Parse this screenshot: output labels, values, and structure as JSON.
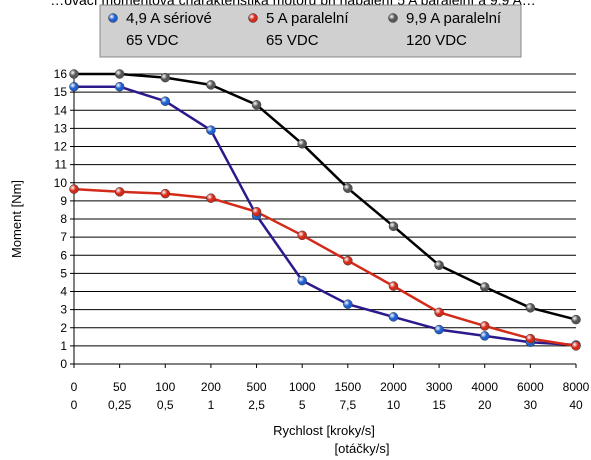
{
  "chart_data": {
    "type": "line",
    "title_partial": "…ovací momentová charakteristika motoru při napájení 5 A paralelní a 9,9 A…",
    "xlabel_lines": [
      "Rychlost [kroky/s]",
      "[otáčky/s]"
    ],
    "ylabel": "Moment [Nm]",
    "ylim": [
      0,
      16
    ],
    "yticks": [
      0,
      1,
      2,
      3,
      4,
      5,
      6,
      7,
      8,
      9,
      10,
      11,
      12,
      13,
      14,
      15,
      16
    ],
    "categories": [
      "0",
      "50",
      "100",
      "200",
      "500",
      "1000",
      "1500",
      "2000",
      "3000",
      "4000",
      "6000",
      "8000"
    ],
    "categories_secondary": [
      "0",
      "0,25",
      "0,5",
      "1",
      "2,5",
      "5",
      "7,5",
      "10",
      "15",
      "20",
      "30",
      "40"
    ],
    "grid": "horizontal",
    "legend_position": "top",
    "series": [
      {
        "name_lines": [
          "4,9 A sériové",
          "65 VDC"
        ],
        "color": "#2a1a8c",
        "marker_color": "#1e5fd0",
        "values": [
          15.3,
          15.3,
          14.5,
          12.9,
          8.2,
          4.6,
          3.3,
          2.6,
          1.9,
          1.55,
          1.2,
          1.05
        ]
      },
      {
        "name_lines": [
          "5 A paralelní",
          "65 VDC"
        ],
        "color": "#d42a1a",
        "marker_color": "#d42a1a",
        "values": [
          9.65,
          9.5,
          9.4,
          9.15,
          8.4,
          7.1,
          5.7,
          4.3,
          2.85,
          2.1,
          1.4,
          1.0
        ]
      },
      {
        "name_lines": [
          "9,9 A paralelní",
          "120 VDC"
        ],
        "color": "#000000",
        "marker_color": "#555555",
        "values": [
          16.0,
          16.0,
          15.8,
          15.4,
          14.3,
          12.15,
          9.7,
          7.6,
          5.45,
          4.25,
          3.1,
          2.45
        ]
      }
    ]
  }
}
